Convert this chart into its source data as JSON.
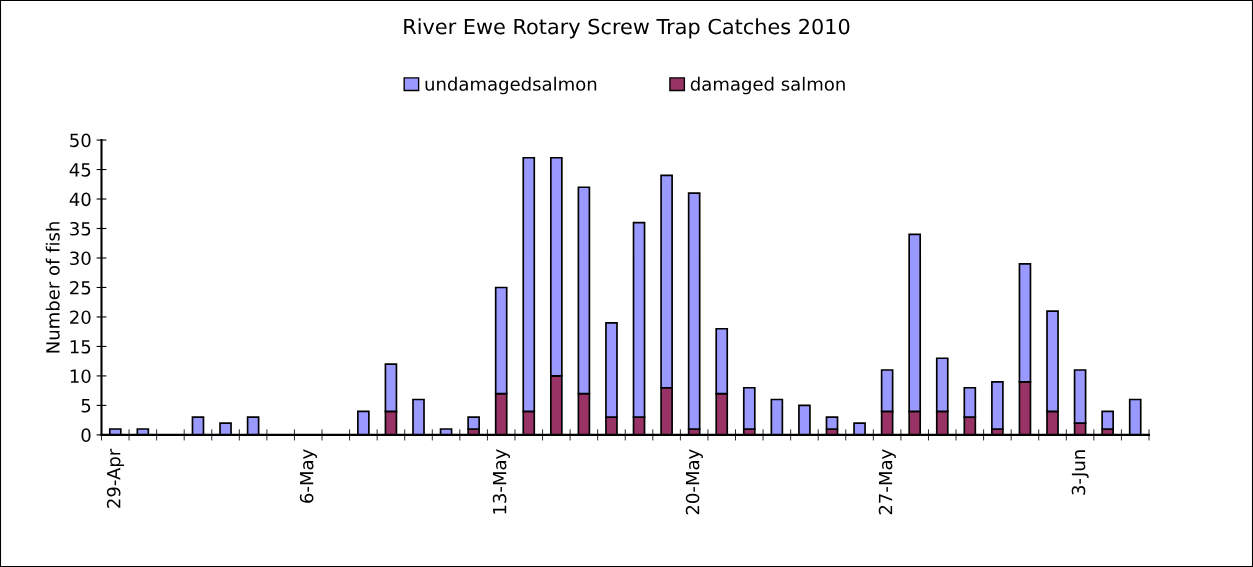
{
  "chart_data": {
    "type": "bar",
    "title": "River Ewe Rotary Screw Trap Catches 2010",
    "ylabel": "Number of fish",
    "categories": [
      "29-Apr",
      null,
      null,
      null,
      null,
      null,
      null,
      "6-May",
      null,
      null,
      null,
      null,
      null,
      null,
      "13-May",
      null,
      null,
      null,
      null,
      null,
      null,
      "20-May",
      null,
      null,
      null,
      null,
      null,
      null,
      "27-May",
      null,
      null,
      null,
      null,
      null,
      null,
      "3-Jun",
      null,
      null
    ],
    "stacked": true,
    "series": [
      {
        "name": "damaged salmon",
        "color": "#993366",
        "values": [
          0,
          0,
          0,
          0,
          0,
          0,
          0,
          0,
          0,
          0,
          4,
          0,
          0,
          1,
          7,
          4,
          10,
          7,
          3,
          3,
          8,
          1,
          7,
          1,
          0,
          0,
          1,
          0,
          4,
          4,
          4,
          3,
          1,
          9,
          4,
          2,
          1,
          0
        ]
      },
      {
        "name": "undamagedsalmon",
        "color": "#9999ff",
        "values": [
          1,
          1,
          0,
          3,
          2,
          3,
          0,
          0,
          0,
          4,
          8,
          6,
          1,
          2,
          18,
          43,
          37,
          35,
          16,
          33,
          36,
          40,
          11,
          7,
          6,
          5,
          2,
          2,
          7,
          30,
          9,
          5,
          8,
          20,
          17,
          9,
          3,
          6
        ]
      }
    ],
    "ylim": [
      0,
      50
    ],
    "yticks": [
      0,
      5,
      10,
      15,
      20,
      25,
      30,
      35,
      40,
      45,
      50
    ],
    "grid": false,
    "legend": "top"
  }
}
